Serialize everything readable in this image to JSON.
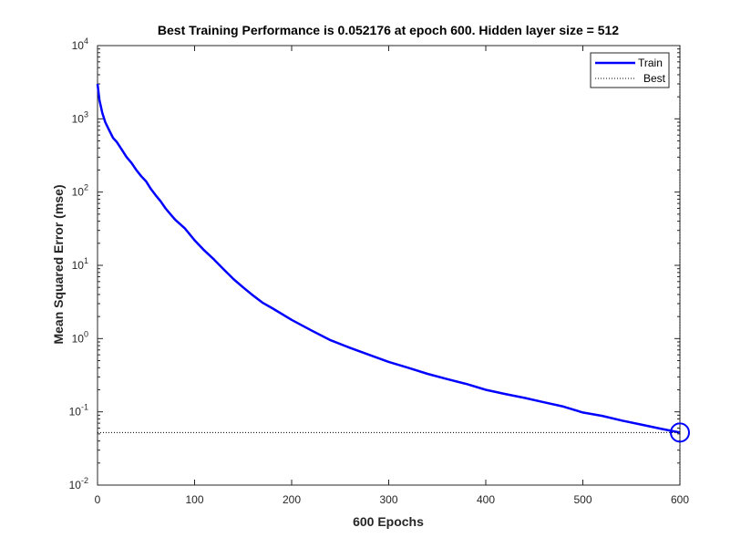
{
  "chart_data": {
    "type": "line",
    "title": "Best Training Performance is 0.052176 at epoch 600. Hidden layer size = 512",
    "xlabel": "600 Epochs",
    "ylabel": "Mean Squared Error  (mse)",
    "xlim": [
      0,
      600
    ],
    "ylim": [
      0.01,
      10000
    ],
    "yscale": "log",
    "grid": false,
    "legend_position": "top-right",
    "x_ticks": [
      0,
      100,
      200,
      300,
      400,
      500,
      600
    ],
    "y_ticks": [
      {
        "value": 0.01,
        "base": "10",
        "exp": "-2"
      },
      {
        "value": 0.1,
        "base": "10",
        "exp": "-1"
      },
      {
        "value": 1,
        "base": "10",
        "exp": "0"
      },
      {
        "value": 10,
        "base": "10",
        "exp": "1"
      },
      {
        "value": 100,
        "base": "10",
        "exp": "2"
      },
      {
        "value": 1000,
        "base": "10",
        "exp": "3"
      },
      {
        "value": 10000,
        "base": "10",
        "exp": "4"
      }
    ],
    "series": [
      {
        "name": "Train",
        "color": "#0000ff",
        "style": "solid",
        "x": [
          0,
          2,
          5,
          8,
          12,
          16,
          20,
          25,
          30,
          35,
          40,
          45,
          50,
          55,
          60,
          65,
          70,
          75,
          80,
          90,
          100,
          110,
          120,
          130,
          140,
          150,
          160,
          170,
          180,
          200,
          220,
          240,
          260,
          280,
          300,
          320,
          340,
          360,
          380,
          400,
          420,
          440,
          460,
          480,
          500,
          520,
          540,
          560,
          580,
          600
        ],
        "y": [
          3000,
          1800,
          1200,
          900,
          700,
          550,
          480,
          380,
          300,
          250,
          200,
          165,
          140,
          110,
          90,
          75,
          60,
          50,
          42,
          32,
          22,
          16,
          12,
          8.8,
          6.5,
          5.0,
          3.9,
          3.1,
          2.6,
          1.8,
          1.3,
          0.95,
          0.75,
          0.6,
          0.48,
          0.4,
          0.33,
          0.28,
          0.24,
          0.2,
          0.175,
          0.155,
          0.135,
          0.118,
          0.098,
          0.088,
          0.076,
          0.067,
          0.059,
          0.052176
        ]
      },
      {
        "name": "Best",
        "color": "#000000",
        "style": "dotted",
        "best_x": 600,
        "best_y": 0.052176
      }
    ]
  }
}
